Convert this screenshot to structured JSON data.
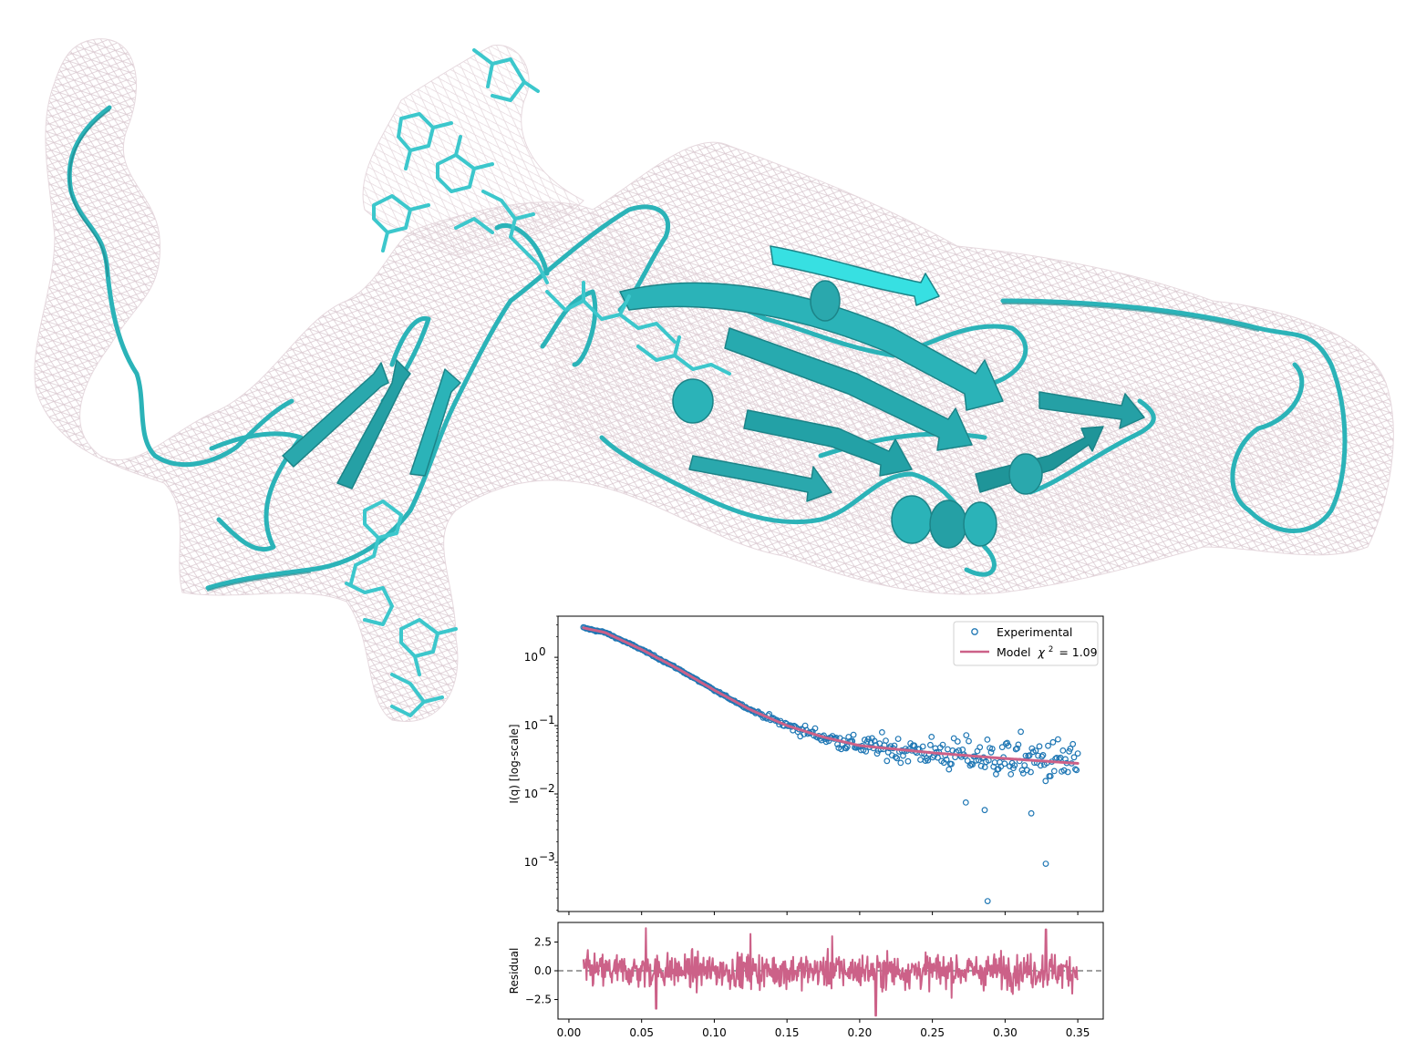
{
  "figure": {
    "colors": {
      "ribbon": "#2bb3b8",
      "ribbon_dark": "#1c8488",
      "mesh": "#d8c6ce",
      "experimental": "#1f77b4",
      "model": "#cc6188",
      "zero_line": "#808080"
    },
    "structure_icon": "protein-ribbon-with-density-mesh"
  },
  "chart_data": [
    {
      "type": "scatter",
      "panel": "intensity",
      "title": "",
      "xlabel": "",
      "ylabel": "I(q) [log-scale]",
      "yscale": "log",
      "xlim": [
        -0.0075,
        0.3675
      ],
      "ylim": [
        0.00019,
        4.0
      ],
      "xticks": [
        0.0,
        0.05,
        0.1,
        0.15,
        0.2,
        0.25,
        0.3,
        0.35
      ],
      "yticks": [
        0.001,
        0.01,
        0.1,
        1.0
      ],
      "ytick_labels": [
        "10^-3",
        "10^-2",
        "10^-1",
        "10^0"
      ],
      "legend": {
        "placement": "top-right",
        "entries": [
          "Experimental",
          "Model"
        ]
      },
      "model_label": "Model",
      "chi_symbol": "χ",
      "chi_value": "= 1.09",
      "series": [
        {
          "name": "Experimental",
          "marker": "open-circle",
          "q_range": [
            0.01,
            0.35
          ],
          "n_points": 400
        },
        {
          "name": "Model",
          "style": "line",
          "points": [
            [
              0.01,
              2.7
            ],
            [
              0.025,
              2.3
            ],
            [
              0.05,
              1.3
            ],
            [
              0.075,
              0.68
            ],
            [
              0.1,
              0.33
            ],
            [
              0.125,
              0.17
            ],
            [
              0.15,
              0.1
            ],
            [
              0.175,
              0.068
            ],
            [
              0.2,
              0.051
            ],
            [
              0.25,
              0.04
            ],
            [
              0.3,
              0.033
            ],
            [
              0.35,
              0.028
            ]
          ]
        }
      ],
      "outliers": [
        [
          0.288,
          0.00027
        ],
        [
          0.328,
          0.00095
        ],
        [
          0.318,
          0.0052
        ],
        [
          0.286,
          0.0058
        ],
        [
          0.273,
          0.0075
        ]
      ]
    },
    {
      "type": "line",
      "panel": "residual",
      "title": "",
      "xlabel": "",
      "ylabel": "Residual",
      "xlim": [
        -0.0075,
        0.3675
      ],
      "ylim": [
        -4.2,
        4.2
      ],
      "xticks": [
        0.0,
        0.05,
        0.1,
        0.15,
        0.2,
        0.25,
        0.3,
        0.35
      ],
      "xtick_labels": [
        "0.00",
        "0.05",
        "0.10",
        "0.15",
        "0.20",
        "0.25",
        "0.30",
        "0.35"
      ],
      "yticks": [
        -2.5,
        0.0,
        2.5
      ],
      "ytick_labels": [
        "−2.5",
        "0.0",
        "2.5"
      ],
      "zero_line": 0,
      "series": [
        {
          "name": "Residual",
          "q_range": [
            0.01,
            0.35
          ],
          "n_points": 800,
          "spikes": [
            [
              0.053,
              3.7
            ],
            [
              0.211,
              -3.9
            ],
            [
              0.328,
              3.6
            ],
            [
              0.06,
              -3.3
            ],
            [
              0.125,
              3.2
            ],
            [
              0.181,
              3.0
            ]
          ]
        }
      ]
    }
  ]
}
